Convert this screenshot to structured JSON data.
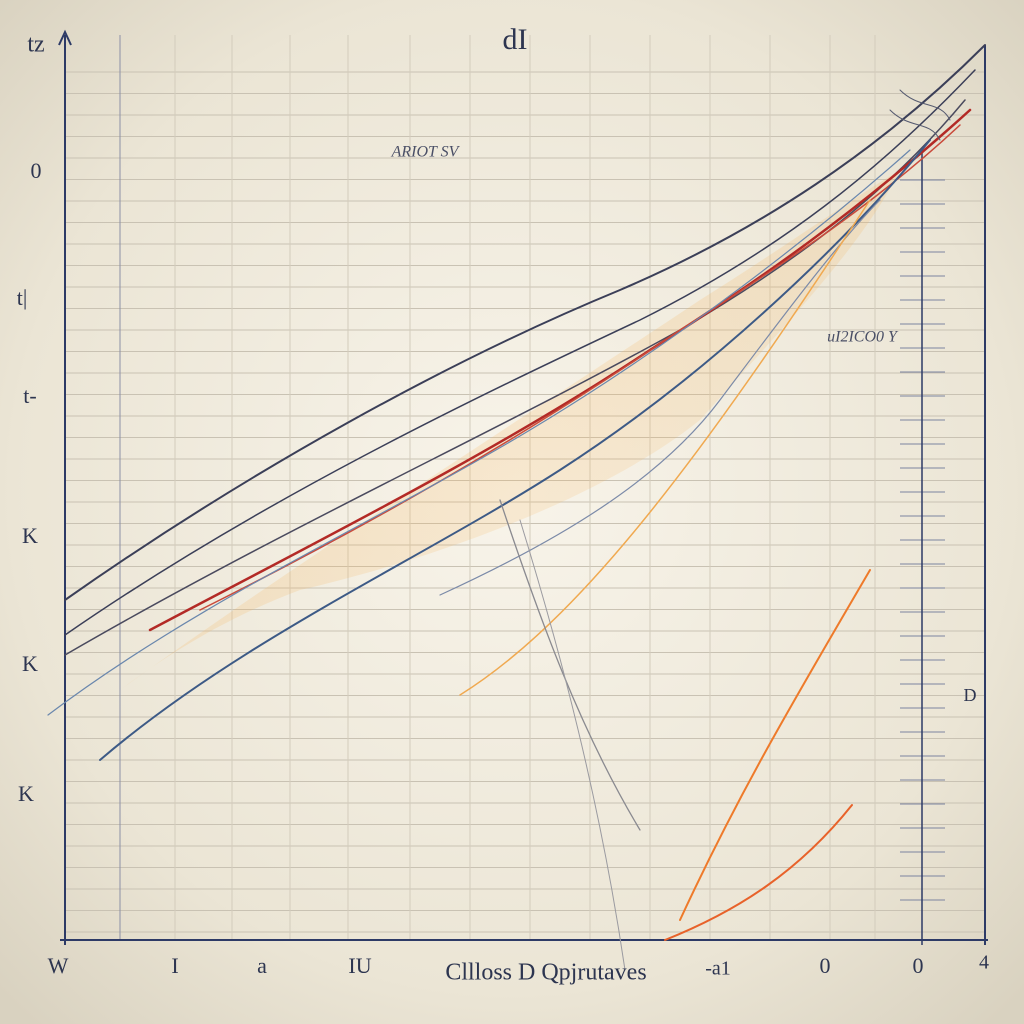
{
  "header": {
    "title": "dI",
    "corner_label": "tz"
  },
  "y_axis_labels": [
    "0",
    "t|",
    "t-",
    "K",
    "K",
    "K"
  ],
  "x_axis_labels": [
    "W",
    "I",
    "a",
    "IU",
    "-a1",
    "0",
    "0",
    "4"
  ],
  "x_axis_caption": "Cllloss D Qpjrutaves",
  "annotations": [
    "ARIOT SV",
    "uI2ICO0 Y",
    "D"
  ]
}
